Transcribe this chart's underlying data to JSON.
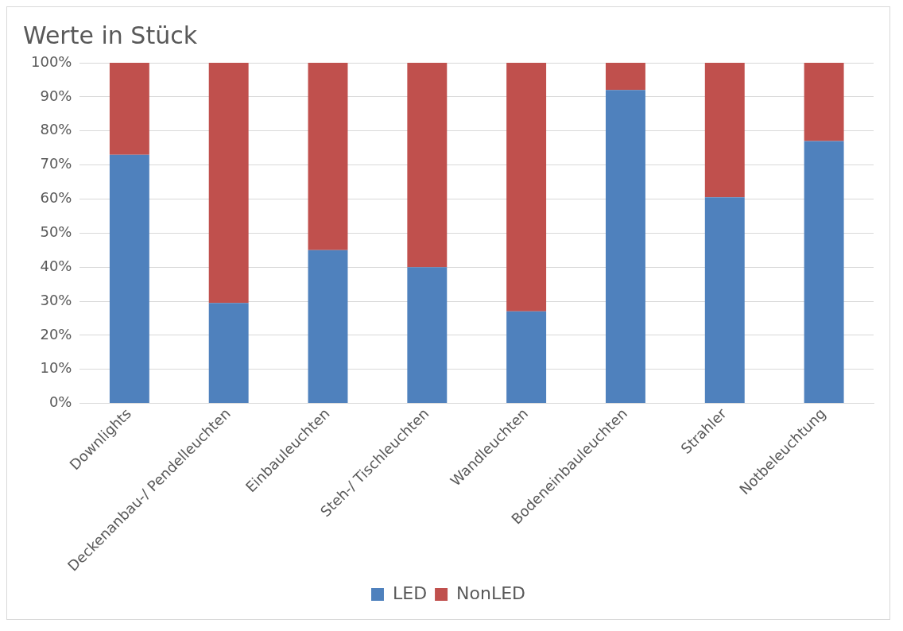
{
  "chart_data": {
    "type": "bar",
    "title": "Werte in Stück",
    "stacked": true,
    "categories": [
      "Downlights",
      "Deckenanbau-/ Pendelleuchten",
      "Einbauleuchten",
      "Steh-/ Tischleuchten",
      "Wandleuchten",
      "Bodeneinbauleuchten",
      "Strahler",
      "Notbeleuchtung"
    ],
    "series": [
      {
        "name": "LED",
        "color": "#4f81bd",
        "values": [
          73,
          29.5,
          45,
          40,
          27,
          92,
          60.5,
          77
        ]
      },
      {
        "name": "NonLED",
        "color": "#c0504d",
        "values": [
          27,
          70.5,
          55,
          60,
          73,
          8,
          39.5,
          23
        ]
      }
    ],
    "ylim": [
      0,
      100
    ],
    "yticks": [
      {
        "value": 0,
        "label": "0%"
      },
      {
        "value": 10,
        "label": "10%"
      },
      {
        "value": 20,
        "label": "20%"
      },
      {
        "value": 30,
        "label": "30%"
      },
      {
        "value": 40,
        "label": "40%"
      },
      {
        "value": 50,
        "label": "50%"
      },
      {
        "value": 60,
        "label": "60%"
      },
      {
        "value": 70,
        "label": "70%"
      },
      {
        "value": 80,
        "label": "80%"
      },
      {
        "value": 90,
        "label": "90%"
      },
      {
        "value": 100,
        "label": "100%"
      }
    ],
    "grid": "y",
    "legend": "bottom"
  }
}
